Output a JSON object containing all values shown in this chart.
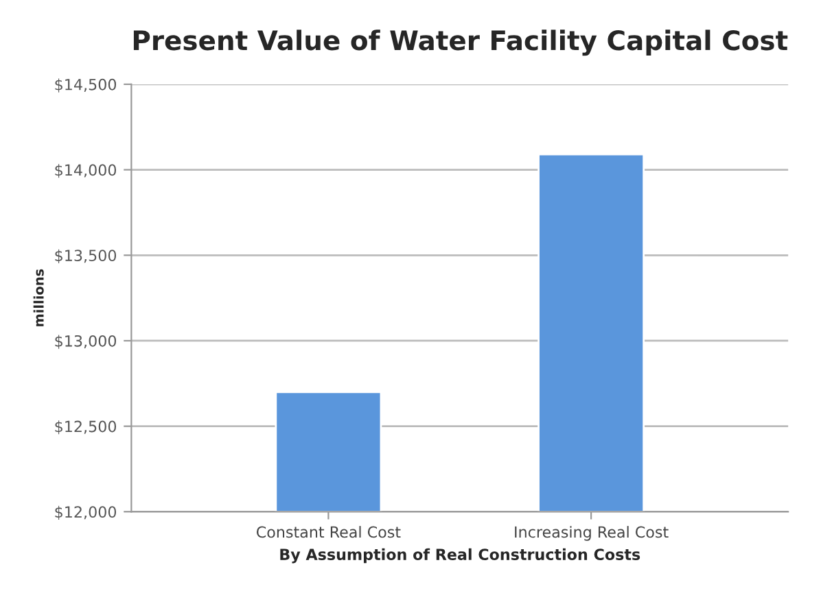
{
  "chart_data": {
    "type": "bar",
    "title": "Present Value of Water Facility Capital Cost",
    "xlabel": "By Assumption of Real Construction Costs",
    "ylabel": "millions",
    "categories": [
      "Constant Real Cost",
      "Increasing Real Cost"
    ],
    "values": [
      12700,
      14090
    ],
    "color": "#5a96dc",
    "ylim": [
      12000,
      14500
    ],
    "yticks": [
      {
        "value": 12000,
        "label": "$12,000"
      },
      {
        "value": 12500,
        "label": "$12,500"
      },
      {
        "value": 13000,
        "label": "$13,000"
      },
      {
        "value": 13500,
        "label": "$13,500"
      },
      {
        "value": 14000,
        "label": "$14,000"
      },
      {
        "value": 14500,
        "label": "$14,500"
      }
    ],
    "grid": "y",
    "legend": false
  }
}
